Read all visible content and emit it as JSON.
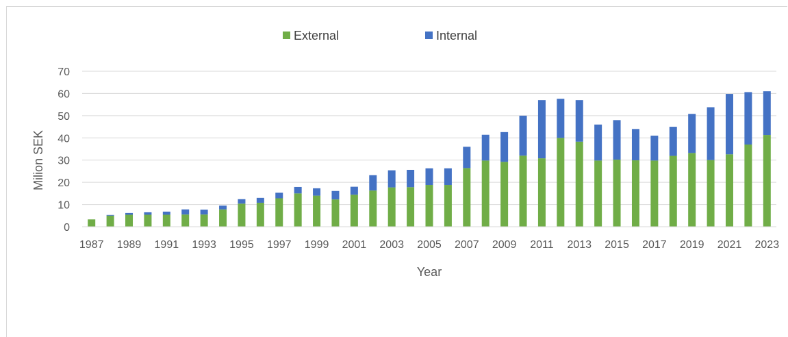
{
  "chart_data": {
    "type": "bar",
    "stacked": true,
    "title": "",
    "xlabel": "Year",
    "ylabel": "Milion SEK",
    "ylim": [
      0,
      70
    ],
    "yticks": [
      0,
      10,
      20,
      30,
      40,
      50,
      60,
      70
    ],
    "grid": true,
    "legend_position": "top",
    "categories": [
      "1987",
      "1988",
      "1989",
      "1990",
      "1991",
      "1992",
      "1993",
      "1994",
      "1995",
      "1996",
      "1997",
      "1998",
      "1999",
      "2000",
      "2001",
      "2002",
      "2003",
      "2004",
      "2005",
      "2006",
      "2007",
      "2008",
      "2009",
      "2010",
      "2011",
      "2012",
      "2013",
      "2014",
      "2015",
      "2016",
      "2017",
      "2018",
      "2019",
      "2020",
      "2021",
      "2022",
      "2023"
    ],
    "x_tick_labels": [
      "1987",
      "1989",
      "1991",
      "1993",
      "1995",
      "1997",
      "1999",
      "2001",
      "2003",
      "2005",
      "2007",
      "2009",
      "2011",
      "2013",
      "2015",
      "2017",
      "2019",
      "2021",
      "2023"
    ],
    "series": [
      {
        "name": "External",
        "color": "#70ad47",
        "values": [
          3.3,
          5.0,
          5.4,
          5.4,
          5.4,
          5.5,
          5.5,
          7.8,
          10.4,
          10.8,
          12.8,
          15.0,
          14.0,
          12.3,
          14.4,
          16.3,
          17.7,
          17.8,
          18.8,
          18.8,
          26.4,
          29.8,
          29.2,
          32.0,
          30.8,
          40.0,
          38.3,
          29.8,
          30.2,
          29.9,
          29.8,
          31.9,
          33.2,
          30.0,
          32.6,
          37.0,
          41.3
        ]
      },
      {
        "name": "Internal",
        "color": "#4472c4",
        "values": [
          0.0,
          0.3,
          0.8,
          1.1,
          1.4,
          2.3,
          2.2,
          1.7,
          2.0,
          2.2,
          2.5,
          2.9,
          3.3,
          3.8,
          3.6,
          6.9,
          7.7,
          7.8,
          7.5,
          7.5,
          9.6,
          11.6,
          13.4,
          18.0,
          26.2,
          17.6,
          18.7,
          16.2,
          17.8,
          14.1,
          11.2,
          13.1,
          17.6,
          23.8,
          27.2,
          23.6,
          19.7
        ]
      }
    ]
  }
}
